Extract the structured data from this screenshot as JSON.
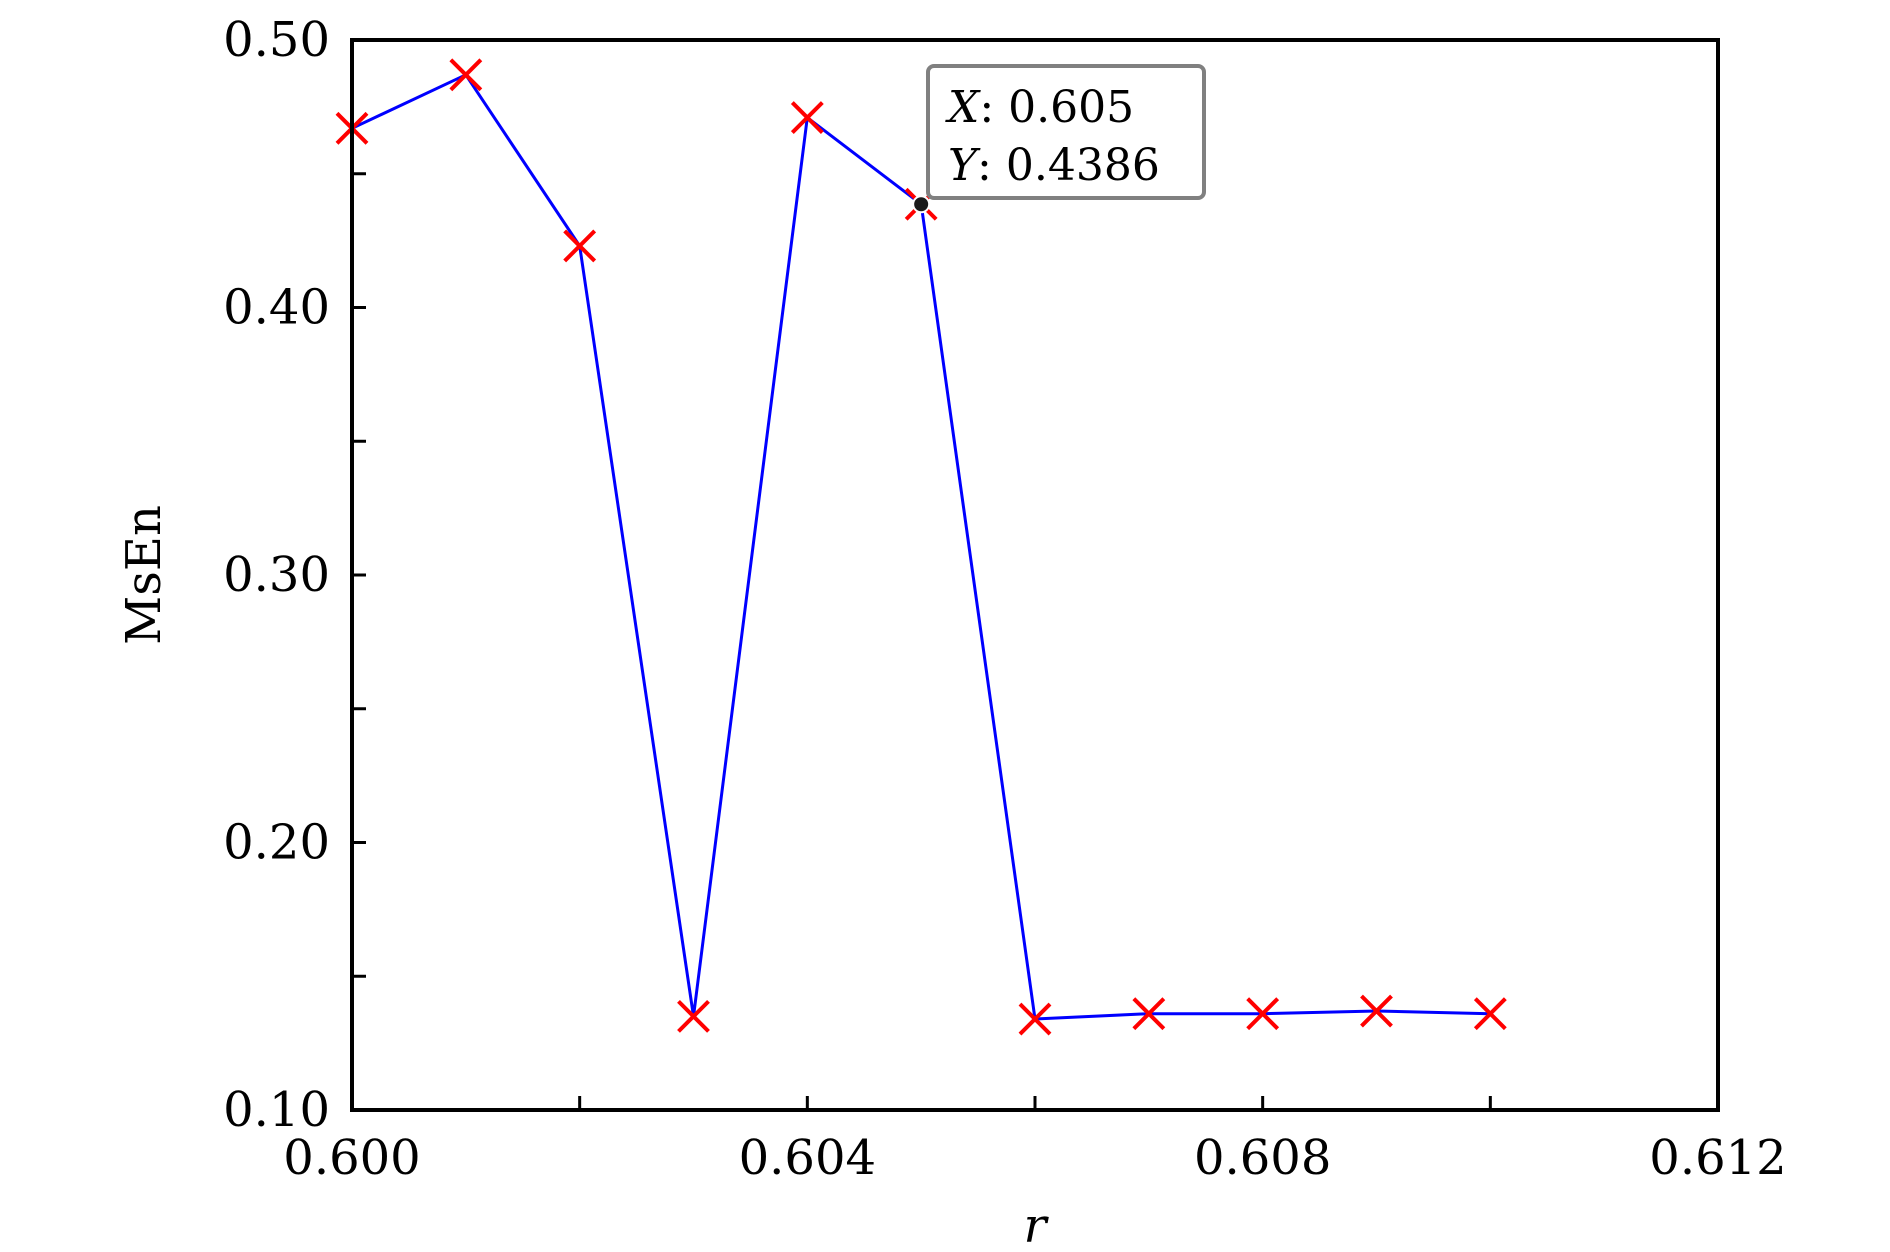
{
  "chart_data": {
    "type": "line",
    "title": "",
    "xlabel": "r",
    "ylabel": "MsEn",
    "xlim": [
      0.6,
      0.612
    ],
    "ylim": [
      0.1,
      0.5
    ],
    "x_ticks": [
      "0.600",
      "0.604",
      "0.608",
      "0.612"
    ],
    "y_ticks": [
      "0.10",
      "0.20",
      "0.30",
      "0.40",
      "0.50"
    ],
    "grid": false,
    "legend": "none",
    "series": [
      {
        "x": [
          0.6,
          0.601,
          0.602,
          0.603,
          0.604,
          0.605,
          0.606,
          0.607,
          0.608,
          0.609,
          0.61
        ],
        "y": [
          0.467,
          0.487,
          0.423,
          0.135,
          0.471,
          0.4386,
          0.134,
          0.136,
          0.136,
          0.137,
          0.136
        ],
        "line_color": "#0000ff",
        "marker": "x",
        "marker_color": "#ff0000"
      }
    ],
    "datatip": {
      "x_label": "X",
      "x_value": "0.605",
      "y_label": "Y",
      "y_value": "0.4386",
      "point": [
        0.605,
        0.4386
      ]
    }
  }
}
